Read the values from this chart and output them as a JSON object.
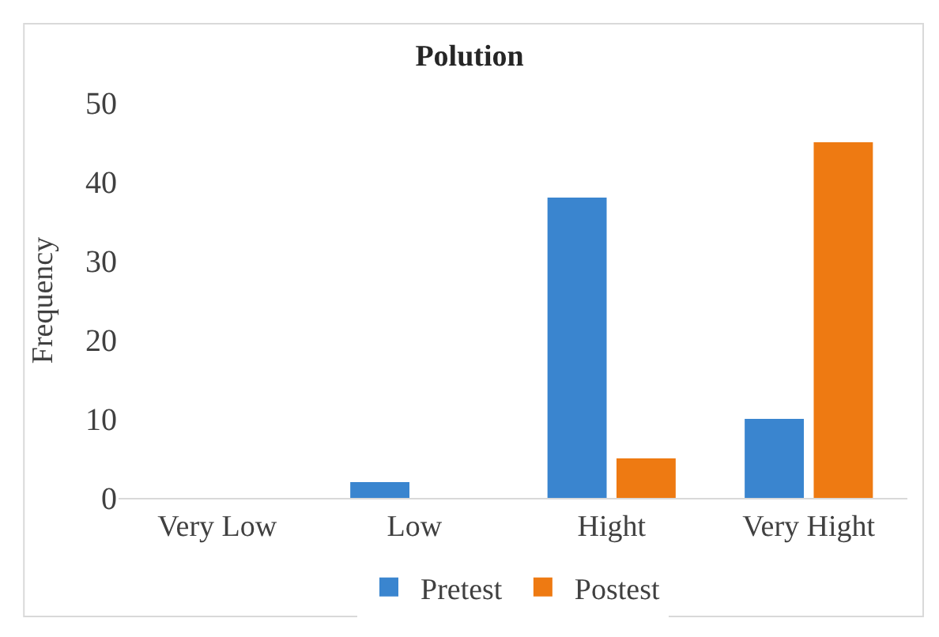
{
  "chart_data": {
    "type": "bar",
    "title": "Polution",
    "ylabel": "Frequency",
    "categories": [
      "Very Low",
      "Low",
      "Hight",
      "Very Hight"
    ],
    "series": [
      {
        "name": "Pretest",
        "color": "#3a85cf",
        "values": [
          0,
          2,
          38,
          10
        ]
      },
      {
        "name": "Postest",
        "color": "#ee7a12",
        "values": [
          0,
          0,
          5,
          45
        ]
      }
    ],
    "ylim": [
      0,
      50
    ],
    "yticks": [
      0,
      10,
      20,
      30,
      40,
      50
    ],
    "grid": false,
    "legend": "bottom"
  }
}
